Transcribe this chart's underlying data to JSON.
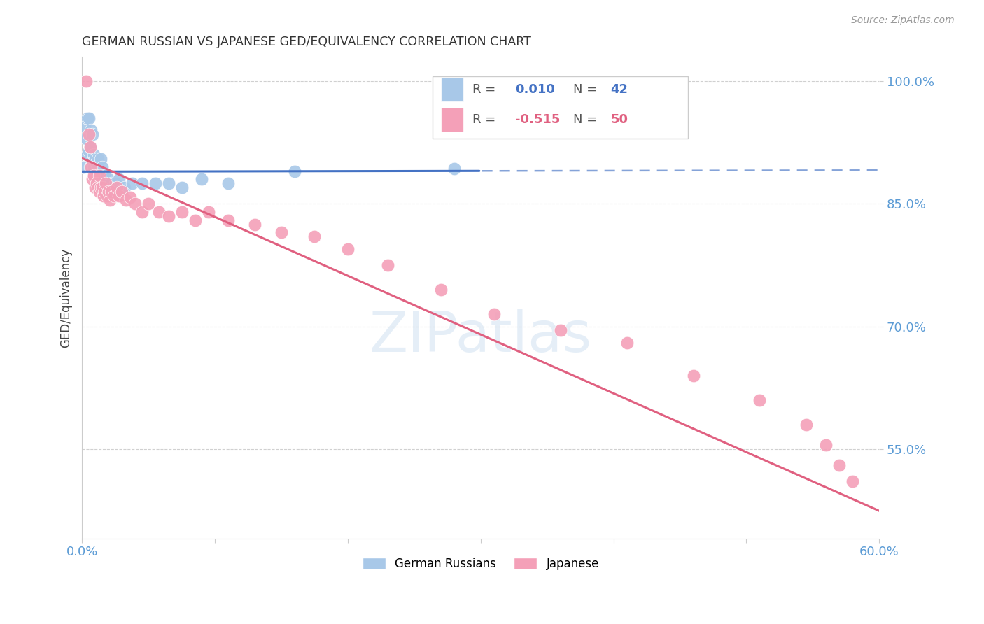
{
  "title": "GERMAN RUSSIAN VS JAPANESE GED/EQUIVALENCY CORRELATION CHART",
  "source": "Source: ZipAtlas.com",
  "ylabel": "GED/Equivalency",
  "xlim": [
    0.0,
    0.6
  ],
  "ylim": [
    0.44,
    1.03
  ],
  "yticks": [
    0.55,
    0.7,
    0.85,
    1.0
  ],
  "ytick_labels": [
    "55.0%",
    "70.0%",
    "85.0%",
    "100.0%"
  ],
  "bg_color": "#ffffff",
  "grid_color": "#d0d0d0",
  "german_russian_color": "#a8c8e8",
  "japanese_color": "#f4a0b8",
  "german_russian_line_color": "#4472c4",
  "japanese_line_color": "#e06080",
  "gr_line_solid_end": 0.3,
  "gr_line_intercept": 0.8895,
  "gr_line_slope": 0.003,
  "jp_line_intercept": 0.906,
  "jp_line_slope": -0.72,
  "german_russian_x": [
    0.001,
    0.002,
    0.003,
    0.004,
    0.004,
    0.005,
    0.005,
    0.006,
    0.006,
    0.007,
    0.007,
    0.008,
    0.008,
    0.009,
    0.009,
    0.01,
    0.01,
    0.011,
    0.011,
    0.012,
    0.012,
    0.013,
    0.014,
    0.015,
    0.015,
    0.016,
    0.017,
    0.018,
    0.02,
    0.022,
    0.025,
    0.028,
    0.032,
    0.038,
    0.045,
    0.055,
    0.065,
    0.075,
    0.09,
    0.11,
    0.16,
    0.28
  ],
  "german_russian_y": [
    0.895,
    0.945,
    0.93,
    0.955,
    0.91,
    0.955,
    0.915,
    0.92,
    0.895,
    0.94,
    0.895,
    0.935,
    0.9,
    0.91,
    0.895,
    0.905,
    0.885,
    0.9,
    0.885,
    0.905,
    0.895,
    0.885,
    0.905,
    0.875,
    0.895,
    0.88,
    0.885,
    0.875,
    0.88,
    0.875,
    0.875,
    0.88,
    0.87,
    0.875,
    0.875,
    0.875,
    0.875,
    0.87,
    0.88,
    0.875,
    0.89,
    0.893
  ],
  "japanese_x": [
    0.003,
    0.005,
    0.006,
    0.007,
    0.008,
    0.009,
    0.01,
    0.011,
    0.012,
    0.013,
    0.013,
    0.014,
    0.015,
    0.016,
    0.017,
    0.018,
    0.019,
    0.02,
    0.021,
    0.022,
    0.024,
    0.026,
    0.028,
    0.03,
    0.033,
    0.036,
    0.04,
    0.045,
    0.05,
    0.058,
    0.065,
    0.075,
    0.085,
    0.095,
    0.11,
    0.13,
    0.15,
    0.175,
    0.2,
    0.23,
    0.27,
    0.31,
    0.36,
    0.41,
    0.46,
    0.51,
    0.545,
    0.56,
    0.57,
    0.58
  ],
  "japanese_y": [
    1.0,
    0.935,
    0.92,
    0.895,
    0.88,
    0.885,
    0.87,
    0.875,
    0.87,
    0.865,
    0.885,
    0.87,
    0.87,
    0.86,
    0.865,
    0.875,
    0.86,
    0.865,
    0.855,
    0.865,
    0.86,
    0.87,
    0.86,
    0.865,
    0.855,
    0.858,
    0.85,
    0.84,
    0.85,
    0.84,
    0.835,
    0.84,
    0.83,
    0.84,
    0.83,
    0.825,
    0.815,
    0.81,
    0.795,
    0.775,
    0.745,
    0.715,
    0.695,
    0.68,
    0.64,
    0.61,
    0.58,
    0.555,
    0.53,
    0.51
  ]
}
